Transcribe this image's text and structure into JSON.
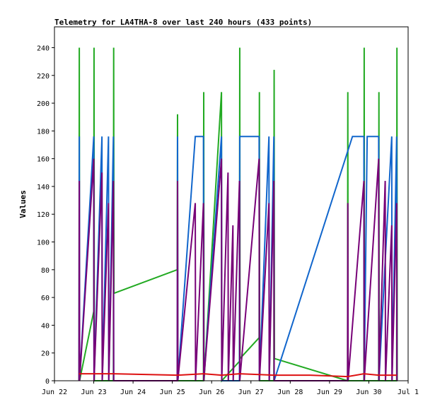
{
  "chart_data": {
    "type": "line",
    "title": "Telemetry for LA4THA-8 over last 240 hours (433 points)",
    "xlabel": "",
    "ylabel": "Values",
    "ylim": [
      0,
      255
    ],
    "xlim": [
      "2023-06-22",
      "2023-07-01"
    ],
    "x_tick_labels": [
      "Jun 22",
      "Jun 23",
      "Jun 24",
      "Jun 25",
      "Jun 26",
      "Jun 27",
      "Jun 28",
      "Jun 29",
      "Jun 30",
      "Jul 1"
    ],
    "y_ticks": [
      0,
      20,
      40,
      60,
      80,
      100,
      120,
      140,
      160,
      180,
      200,
      220,
      240
    ],
    "grid": false,
    "legend": "none",
    "series": [
      {
        "color": "#22aa22",
        "points": [
          [
            "2023-06-22 15:00",
            0
          ],
          [
            "2023-06-22 15:10",
            240
          ],
          [
            "2023-06-22 15:20",
            0
          ],
          [
            "2023-06-23 00:00",
            50
          ],
          [
            "2023-06-23 00:10",
            240
          ],
          [
            "2023-06-23 00:20",
            0
          ],
          [
            "2023-06-23 12:00",
            0
          ],
          [
            "2023-06-23 12:10",
            240
          ],
          [
            "2023-06-23 12:20",
            63
          ],
          [
            "2023-06-25 03:00",
            80
          ],
          [
            "2023-06-25 03:10",
            192
          ],
          [
            "2023-06-25 03:20",
            0
          ],
          [
            "2023-06-25 19:00",
            0
          ],
          [
            "2023-06-25 19:10",
            208
          ],
          [
            "2023-06-25 19:20",
            0
          ],
          [
            "2023-06-26 06:00",
            208
          ],
          [
            "2023-06-26 06:10",
            0
          ],
          [
            "2023-06-26 17:00",
            14
          ],
          [
            "2023-06-26 17:10",
            240
          ],
          [
            "2023-06-26 17:20",
            16
          ],
          [
            "2023-06-27 05:00",
            31
          ],
          [
            "2023-06-27 05:10",
            208
          ],
          [
            "2023-06-27 05:20",
            0
          ],
          [
            "2023-06-27 14:00",
            0
          ],
          [
            "2023-06-27 14:10",
            224
          ],
          [
            "2023-06-27 14:20",
            16
          ],
          [
            "2023-06-29 11:00",
            0
          ],
          [
            "2023-06-29 11:10",
            208
          ],
          [
            "2023-06-29 11:20",
            0
          ],
          [
            "2023-06-29 21:00",
            0
          ],
          [
            "2023-06-29 21:10",
            240
          ],
          [
            "2023-06-29 21:20",
            0
          ],
          [
            "2023-06-30 06:00",
            0
          ],
          [
            "2023-06-30 06:10",
            208
          ],
          [
            "2023-06-30 06:20",
            0
          ],
          [
            "2023-06-30 17:00",
            0
          ],
          [
            "2023-06-30 17:10",
            240
          ],
          [
            "2023-06-30 17:20",
            0
          ]
        ]
      },
      {
        "color": "#1166cc",
        "points": [
          [
            "2023-06-22 15:00",
            0
          ],
          [
            "2023-06-22 15:10",
            176
          ],
          [
            "2023-06-22 15:20",
            0
          ],
          [
            "2023-06-23 00:00",
            176
          ],
          [
            "2023-06-23 00:10",
            0
          ],
          [
            "2023-06-23 05:00",
            176
          ],
          [
            "2023-06-23 05:10",
            0
          ],
          [
            "2023-06-23 09:00",
            176
          ],
          [
            "2023-06-23 09:10",
            0
          ],
          [
            "2023-06-23 12:00",
            176
          ],
          [
            "2023-06-23 12:10",
            0
          ],
          [
            "2023-06-25 03:00",
            0
          ],
          [
            "2023-06-25 03:10",
            176
          ],
          [
            "2023-06-25 03:20",
            0
          ],
          [
            "2023-06-25 14:00",
            176
          ],
          [
            "2023-06-25 19:00",
            176
          ],
          [
            "2023-06-25 19:10",
            0
          ],
          [
            "2023-06-26 06:00",
            176
          ],
          [
            "2023-06-26 06:10",
            0
          ],
          [
            "2023-06-26 17:00",
            0
          ],
          [
            "2023-06-26 17:10",
            176
          ],
          [
            "2023-06-27 05:00",
            176
          ],
          [
            "2023-06-27 05:10",
            0
          ],
          [
            "2023-06-27 11:00",
            176
          ],
          [
            "2023-06-27 11:10",
            0
          ],
          [
            "2023-06-27 14:00",
            176
          ],
          [
            "2023-06-27 14:10",
            0
          ],
          [
            "2023-06-29 14:00",
            176
          ],
          [
            "2023-06-29 21:00",
            176
          ],
          [
            "2023-06-29 21:10",
            0
          ],
          [
            "2023-06-29 23:00",
            176
          ],
          [
            "2023-06-30 06:00",
            176
          ],
          [
            "2023-06-30 06:10",
            0
          ],
          [
            "2023-06-30 14:00",
            176
          ],
          [
            "2023-06-30 14:10",
            0
          ],
          [
            "2023-06-30 17:00",
            176
          ],
          [
            "2023-06-30 17:10",
            0
          ]
        ]
      },
      {
        "color": "#770077",
        "points": [
          [
            "2023-06-22 15:00",
            0
          ],
          [
            "2023-06-22 15:10",
            144
          ],
          [
            "2023-06-22 15:20",
            0
          ],
          [
            "2023-06-23 00:00",
            160
          ],
          [
            "2023-06-23 00:10",
            0
          ],
          [
            "2023-06-23 05:00",
            150
          ],
          [
            "2023-06-23 05:10",
            0
          ],
          [
            "2023-06-23 09:00",
            128
          ],
          [
            "2023-06-23 09:10",
            0
          ],
          [
            "2023-06-23 12:00",
            144
          ],
          [
            "2023-06-23 12:10",
            0
          ],
          [
            "2023-06-25 03:00",
            0
          ],
          [
            "2023-06-25 03:10",
            144
          ],
          [
            "2023-06-25 03:20",
            0
          ],
          [
            "2023-06-25 14:00",
            128
          ],
          [
            "2023-06-25 14:10",
            0
          ],
          [
            "2023-06-25 19:00",
            128
          ],
          [
            "2023-06-25 19:10",
            0
          ],
          [
            "2023-06-26 06:00",
            160
          ],
          [
            "2023-06-26 06:10",
            0
          ],
          [
            "2023-06-26 10:00",
            150
          ],
          [
            "2023-06-26 10:10",
            0
          ],
          [
            "2023-06-26 13:00",
            112
          ],
          [
            "2023-06-26 13:10",
            0
          ],
          [
            "2023-06-26 17:00",
            144
          ],
          [
            "2023-06-26 17:10",
            0
          ],
          [
            "2023-06-27 05:00",
            160
          ],
          [
            "2023-06-27 05:10",
            0
          ],
          [
            "2023-06-27 11:00",
            128
          ],
          [
            "2023-06-27 11:10",
            0
          ],
          [
            "2023-06-27 14:00",
            144
          ],
          [
            "2023-06-27 14:10",
            0
          ],
          [
            "2023-06-29 11:00",
            0
          ],
          [
            "2023-06-29 11:10",
            128
          ],
          [
            "2023-06-29 11:20",
            0
          ],
          [
            "2023-06-29 21:00",
            144
          ],
          [
            "2023-06-29 21:10",
            0
          ],
          [
            "2023-06-30 06:00",
            160
          ],
          [
            "2023-06-30 06:10",
            0
          ],
          [
            "2023-06-30 10:00",
            144
          ],
          [
            "2023-06-30 10:10",
            0
          ],
          [
            "2023-06-30 14:00",
            112
          ],
          [
            "2023-06-30 14:10",
            0
          ],
          [
            "2023-06-30 17:00",
            128
          ],
          [
            "2023-06-30 17:10",
            0
          ]
        ]
      },
      {
        "color": "#dd1111",
        "points": [
          [
            "2023-06-22 15:00",
            5
          ],
          [
            "2023-06-23 12:00",
            5
          ],
          [
            "2023-06-25 03:00",
            4
          ],
          [
            "2023-06-25 19:00",
            5
          ],
          [
            "2023-06-26 06:00",
            4
          ],
          [
            "2023-06-26 17:00",
            5
          ],
          [
            "2023-06-27 14:00",
            4
          ],
          [
            "2023-06-28 12:00",
            4
          ],
          [
            "2023-06-29 11:00",
            3
          ],
          [
            "2023-06-29 21:00",
            5
          ],
          [
            "2023-06-30 06:00",
            4
          ],
          [
            "2023-06-30 17:00",
            4
          ]
        ]
      }
    ]
  }
}
